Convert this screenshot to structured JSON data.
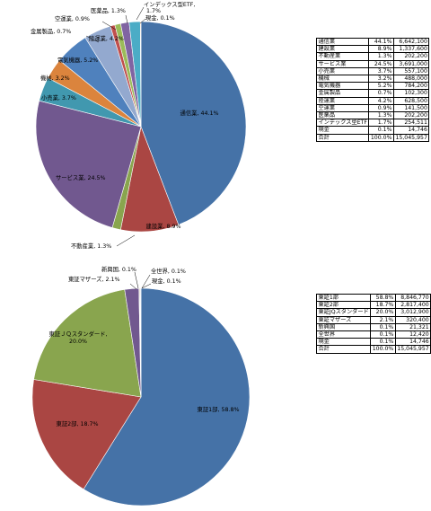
{
  "chart_data": [
    {
      "type": "pie",
      "categories": [
        "通信業",
        "建設業",
        "不動産業",
        "サービス業",
        "小売業",
        "機械",
        "電気機器",
        "陸運業",
        "金属製品",
        "空運業",
        "医薬品",
        "インデックス型ETF",
        "現金"
      ],
      "values": [
        44.1,
        8.9,
        1.3,
        24.5,
        3.7,
        3.2,
        5.2,
        4.2,
        0.7,
        0.9,
        1.3,
        1.7,
        0.1
      ],
      "colors": [
        "#4572a7",
        "#aa4643",
        "#89a54e",
        "#71588f",
        "#4198af",
        "#db843d",
        "#4f81bd",
        "#93a9cf",
        "#c0504d",
        "#9bbb59",
        "#8064a2",
        "#4bacc6",
        "#f79646"
      ],
      "slice_labels": [
        "通信業, 44.1%",
        "建設業, 8.9%",
        "不動産業, 1.3%",
        "サービス業, 24.5%",
        "小売業, 3.7%",
        "機械, 3.2%",
        "電気機器, 5.2%",
        "陸運業, 4.2%",
        "金属製品, 0.7%",
        "空運業, 0.9%",
        "医薬品, 1.3%",
        "インデックス型ETF,",
        "現金, 0.1%"
      ],
      "extra_label": "1.7%",
      "table": {
        "rows": [
          [
            "通信業",
            "44.1%",
            "6,642,100"
          ],
          [
            "建設業",
            "8.9%",
            "1,337,600"
          ],
          [
            "不動産業",
            "1.3%",
            "202,200"
          ],
          [
            "サービス業",
            "24.5%",
            "3,691,000"
          ],
          [
            "小売業",
            "3.7%",
            "557,100"
          ],
          [
            "機械",
            "3.2%",
            "488,000"
          ],
          [
            "電気機器",
            "5.2%",
            "784,200"
          ],
          [
            "金属製品",
            "0.7%",
            "102,300"
          ],
          [
            "陸運業",
            "4.2%",
            "628,500"
          ],
          [
            "空運業",
            "0.9%",
            "141,500"
          ],
          [
            "医薬品",
            "1.3%",
            "202,200"
          ],
          [
            "インデックス型ETF",
            "1.7%",
            "254,511"
          ],
          [
            "現金",
            "0.1%",
            "14,746"
          ],
          [
            "合計",
            "100.0%",
            "15,045,957"
          ]
        ]
      }
    },
    {
      "type": "pie",
      "categories": [
        "東証1部",
        "東証2部",
        "東証ＪＱスタンダード",
        "東証マザーズ",
        "新興国",
        "全世界",
        "現金"
      ],
      "values": [
        58.8,
        18.7,
        20.0,
        2.1,
        0.1,
        0.1,
        0.1
      ],
      "colors": [
        "#4572a7",
        "#aa4643",
        "#89a54e",
        "#71588f",
        "#4198af",
        "#db843d",
        "#93a9cf"
      ],
      "slice_labels": [
        "東証1部, 58.8%",
        "東証2部, 18.7%",
        "東証ＪＱスタンダード,",
        "東証マザーズ, 2.1%",
        "新興国, 0.1%",
        "全世界, 0.1%",
        "現金, 0.1%"
      ],
      "extra_label": "20.0%",
      "table": {
        "rows": [
          [
            "東証1部",
            "58.8%",
            "8,846,770"
          ],
          [
            "東証2部",
            "18.7%",
            "2,817,400"
          ],
          [
            "東証JQスタンダード",
            "20.0%",
            "3,012,900"
          ],
          [
            "東証マザーズ",
            "2.1%",
            "320,400"
          ],
          [
            "新興国",
            "0.1%",
            "21,321"
          ],
          [
            "全世界",
            "0.1%",
            "12,420"
          ],
          [
            "現金",
            "0.1%",
            "14,746"
          ],
          [
            "合計",
            "100.0%",
            "15,045,957"
          ]
        ]
      }
    }
  ]
}
